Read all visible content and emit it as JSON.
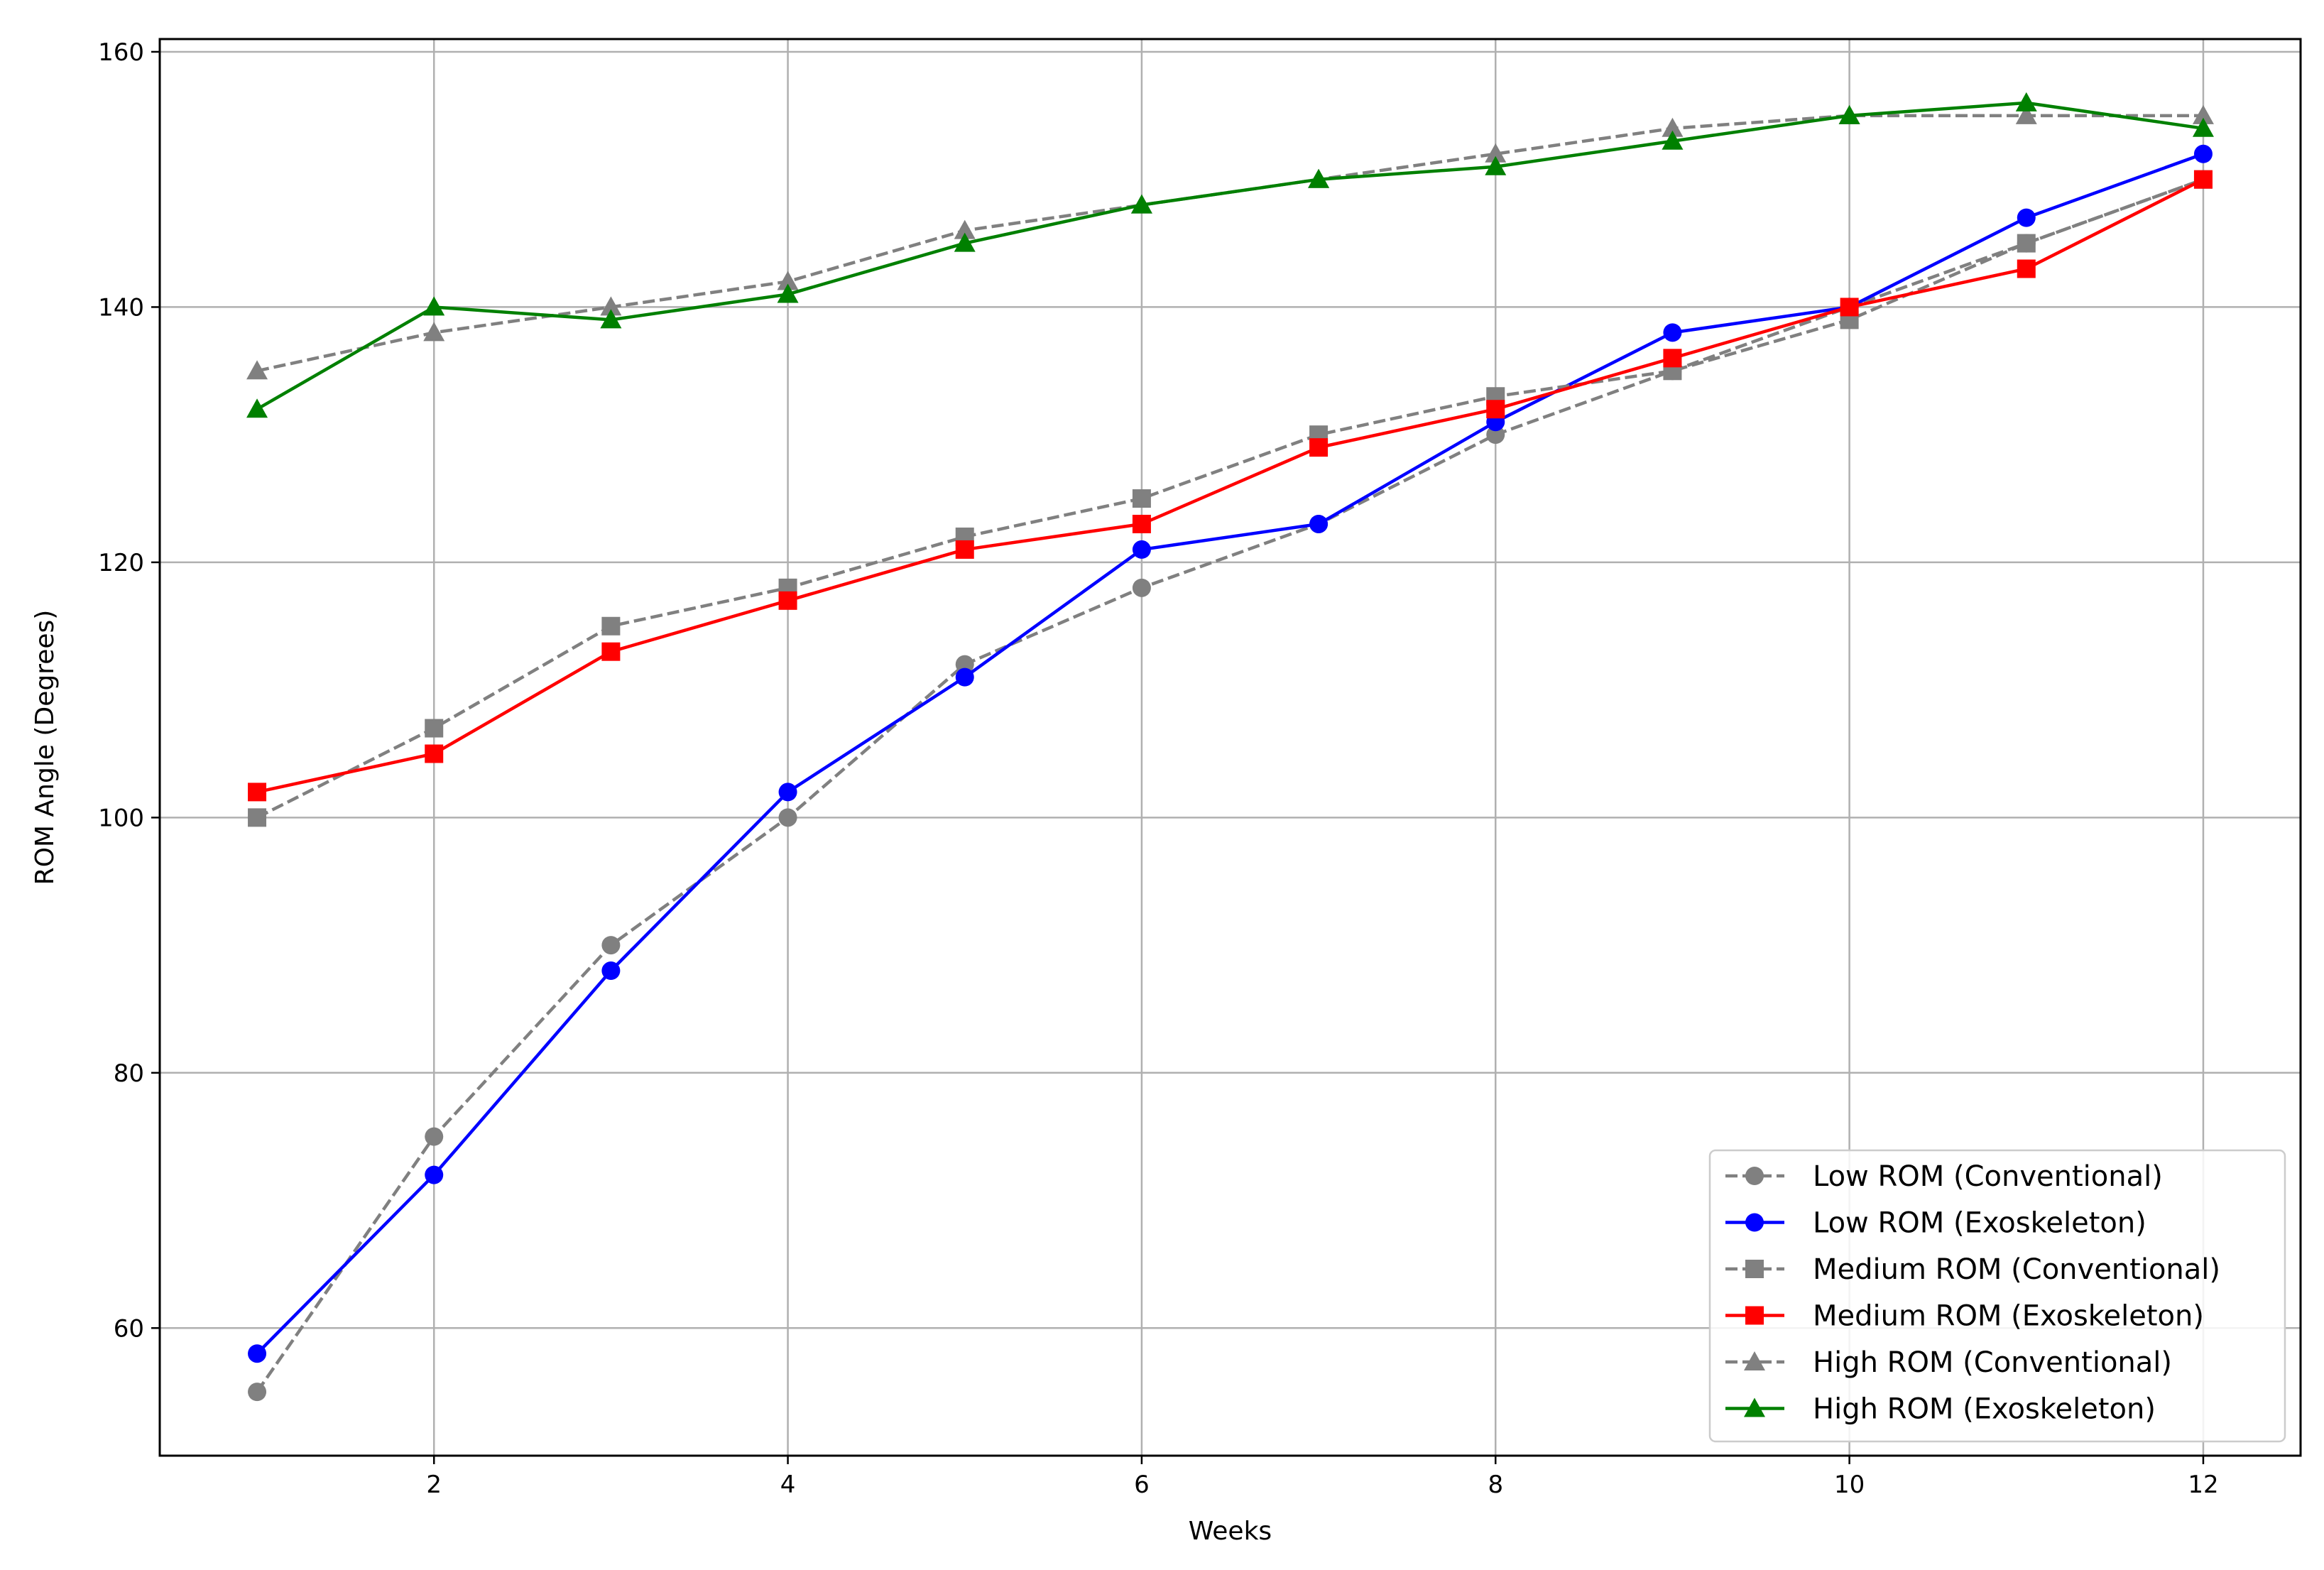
{
  "chart_data": {
    "type": "line",
    "title": "",
    "xlabel": "Weeks",
    "ylabel": "ROM Angle (Degrees)",
    "xlim": [
      0.45,
      12.55
    ],
    "ylim": [
      50,
      161
    ],
    "xticks": [
      2,
      4,
      6,
      8,
      10,
      12
    ],
    "yticks": [
      60,
      80,
      100,
      120,
      140,
      160
    ],
    "grid": true,
    "legend_position": "lower-right",
    "x": [
      1,
      2,
      3,
      4,
      5,
      6,
      7,
      8,
      9,
      10,
      11,
      12
    ],
    "series": [
      {
        "name": "Low ROM (Conventional)",
        "color": "#808080",
        "dash": true,
        "marker": "circle",
        "values": [
          55,
          75,
          90,
          100,
          112,
          118,
          123,
          130,
          135,
          140,
          145,
          150
        ]
      },
      {
        "name": "Low ROM (Exoskeleton)",
        "color": "#0000ff",
        "dash": false,
        "marker": "circle",
        "values": [
          58,
          72,
          88,
          102,
          111,
          121,
          123,
          131,
          138,
          140,
          147,
          152
        ]
      },
      {
        "name": "Medium ROM (Conventional)",
        "color": "#808080",
        "dash": true,
        "marker": "square",
        "values": [
          100,
          107,
          115,
          118,
          122,
          125,
          130,
          133,
          135,
          139,
          145,
          150
        ]
      },
      {
        "name": "Medium ROM (Exoskeleton)",
        "color": "#ff0000",
        "dash": false,
        "marker": "square",
        "values": [
          102,
          105,
          113,
          117,
          121,
          123,
          129,
          132,
          136,
          140,
          143,
          150
        ]
      },
      {
        "name": "High ROM (Conventional)",
        "color": "#808080",
        "dash": true,
        "marker": "triangle",
        "values": [
          135,
          138,
          140,
          142,
          146,
          148,
          150,
          152,
          154,
          155,
          155,
          155
        ]
      },
      {
        "name": "High ROM (Exoskeleton)",
        "color": "#008000",
        "dash": false,
        "marker": "triangle",
        "values": [
          132,
          140,
          139,
          141,
          145,
          148,
          150,
          151,
          153,
          155,
          156,
          154
        ]
      }
    ]
  }
}
